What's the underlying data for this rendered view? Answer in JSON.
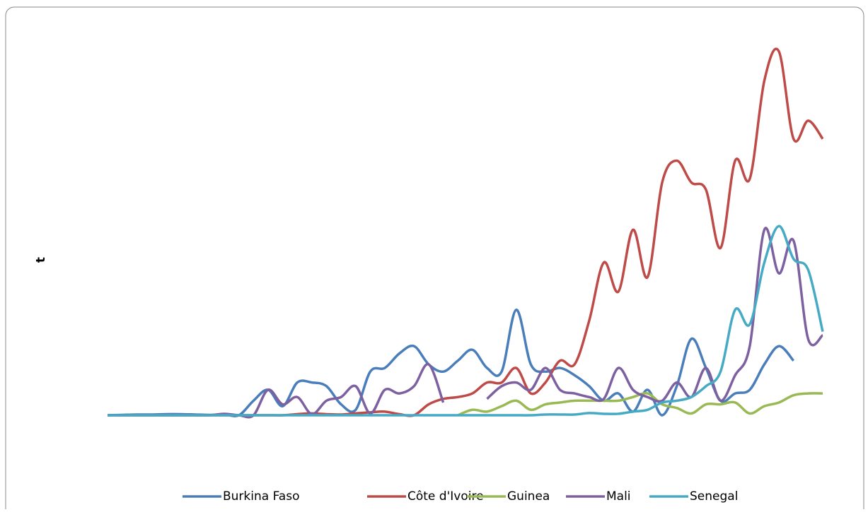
{
  "chart_data": {
    "type": "line",
    "y_label": "t",
    "categories": [
      null,
      null,
      null,
      null,
      null,
      null,
      null,
      null,
      null,
      null,
      null,
      null,
      null,
      null,
      null,
      null,
      null,
      null,
      null,
      null,
      null,
      null,
      null,
      null,
      null,
      null,
      null,
      null,
      null,
      null,
      null,
      null,
      null,
      null,
      null,
      null,
      null,
      null,
      null,
      null,
      null,
      null,
      null,
      null,
      null,
      null,
      null,
      null,
      null,
      null
    ],
    "ylim": [
      0,
      100
    ],
    "series": [
      {
        "name": "Burkina Faso",
        "color": "#4a7ebb",
        "values": [
          0,
          0.1,
          0.2,
          0.2,
          0.3,
          0.3,
          0.2,
          0.1,
          0.2,
          0,
          4,
          7,
          2.5,
          9,
          9,
          8,
          3,
          1.5,
          12,
          13,
          17,
          19,
          14,
          12,
          15,
          18,
          13,
          12,
          29,
          14,
          12,
          13,
          11,
          8,
          4,
          6,
          1,
          7,
          0,
          8,
          21,
          13,
          4,
          6,
          7,
          14,
          19,
          15,
          null,
          null
        ]
      },
      {
        "name": "Côte d'Ivoire",
        "color": "#be4b48",
        "values": [
          0,
          0,
          0,
          0,
          0,
          0,
          0,
          0,
          0,
          0,
          0,
          0,
          0,
          0.3,
          0.5,
          0.3,
          0.2,
          0.5,
          0.8,
          1,
          0.3,
          0,
          3,
          4.5,
          5,
          6,
          9,
          9,
          13,
          6,
          9,
          15,
          14,
          26,
          42,
          34,
          51,
          38,
          64,
          70,
          64,
          62,
          46,
          70,
          65,
          92,
          100,
          76,
          81,
          76
        ]
      },
      {
        "name": "Guinea",
        "color": "#98b954",
        "values": [
          null,
          null,
          null,
          null,
          null,
          null,
          null,
          null,
          null,
          null,
          null,
          null,
          null,
          null,
          null,
          null,
          null,
          null,
          null,
          null,
          null,
          null,
          null,
          null,
          0,
          1.5,
          1,
          2.5,
          4,
          1.5,
          3,
          3.5,
          4,
          4,
          4,
          4,
          5,
          6,
          3,
          2,
          0.5,
          3,
          3,
          3.5,
          0.5,
          2.5,
          3.5,
          5.5,
          6,
          6
        ]
      },
      {
        "name": "Mali",
        "color": "#7d60a0",
        "values": [
          0,
          0,
          0,
          0,
          0,
          0,
          0,
          0,
          0.4,
          0,
          0,
          7,
          3,
          5,
          0.3,
          4,
          5,
          8,
          0.5,
          7,
          6,
          8,
          14,
          3.5,
          null,
          null,
          4.5,
          8,
          9,
          7,
          13,
          7,
          6,
          5,
          4.5,
          13,
          7,
          5,
          4,
          9,
          5,
          13,
          4,
          11,
          19,
          51,
          39,
          48,
          21,
          22
        ]
      },
      {
        "name": "Senegal",
        "color": "#46aac5",
        "values": [
          0,
          0,
          0,
          0,
          0,
          0,
          0,
          0,
          0,
          0,
          0,
          0,
          0,
          0,
          0,
          0,
          0,
          0,
          0,
          0,
          0,
          0,
          0,
          0,
          0,
          0,
          0,
          0,
          0,
          0,
          0.2,
          0.2,
          0.2,
          0.6,
          0.4,
          0.4,
          1,
          1.5,
          3.5,
          4,
          5,
          8,
          12,
          29,
          25,
          42,
          52,
          43,
          40,
          23
        ]
      }
    ]
  }
}
